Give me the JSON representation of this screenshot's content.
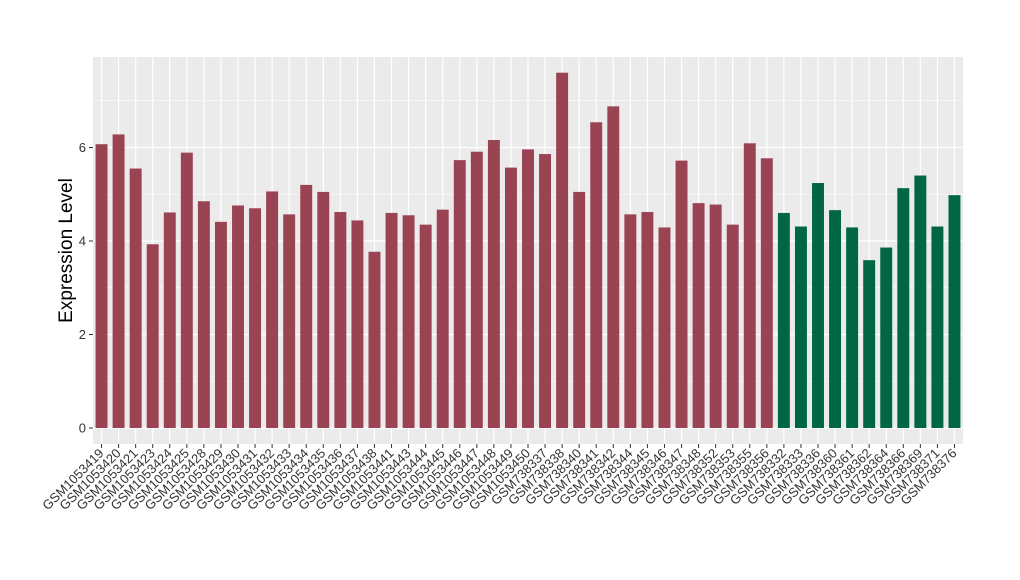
{
  "chart_data": {
    "type": "bar",
    "title": "",
    "xlabel": "",
    "ylabel": "Expression Level",
    "ylim": [
      0,
      7.9
    ],
    "yticks": [
      0,
      2,
      4,
      6
    ],
    "grid": true,
    "legend": "none",
    "colors": {
      "group_a": "#9A4352",
      "group_b": "#006643",
      "panel": "#EBEBEB",
      "grid": "#FFFFFF"
    },
    "categories": [
      "GSM1053419",
      "GSM1053420",
      "GSM1053421",
      "GSM1053423",
      "GSM1053424",
      "GSM1053425",
      "GSM1053428",
      "GSM1053429",
      "GSM1053430",
      "GSM1053431",
      "GSM1053432",
      "GSM1053433",
      "GSM1053434",
      "GSM1053435",
      "GSM1053436",
      "GSM1053437",
      "GSM1053438",
      "GSM1053441",
      "GSM1053443",
      "GSM1053444",
      "GSM1053445",
      "GSM1053446",
      "GSM1053447",
      "GSM1053448",
      "GSM1053449",
      "GSM1053450",
      "GSM738337",
      "GSM738338",
      "GSM738340",
      "GSM738341",
      "GSM738342",
      "GSM738344",
      "GSM738345",
      "GSM738346",
      "GSM738347",
      "GSM738348",
      "GSM738352",
      "GSM738353",
      "GSM738355",
      "GSM738356",
      "GSM738332",
      "GSM738333",
      "GSM738336",
      "GSM738360",
      "GSM738361",
      "GSM738362",
      "GSM738364",
      "GSM738366",
      "GSM738369",
      "GSM738371",
      "GSM738376"
    ],
    "values": [
      6.07,
      6.28,
      5.55,
      3.93,
      4.61,
      5.89,
      4.85,
      4.41,
      4.76,
      4.7,
      5.06,
      4.57,
      5.2,
      5.05,
      4.62,
      4.44,
      3.77,
      4.6,
      4.55,
      4.35,
      4.67,
      5.73,
      5.91,
      6.16,
      5.57,
      5.96,
      5.86,
      7.6,
      5.05,
      6.54,
      6.88,
      4.57,
      4.62,
      4.29,
      5.72,
      4.81,
      4.78,
      4.35,
      6.09,
      5.77,
      4.6,
      4.31,
      5.24,
      4.66,
      4.29,
      3.59,
      3.86,
      5.13,
      5.4,
      4.31,
      4.98
    ],
    "groups": [
      "a",
      "a",
      "a",
      "a",
      "a",
      "a",
      "a",
      "a",
      "a",
      "a",
      "a",
      "a",
      "a",
      "a",
      "a",
      "a",
      "a",
      "a",
      "a",
      "a",
      "a",
      "a",
      "a",
      "a",
      "a",
      "a",
      "a",
      "a",
      "a",
      "a",
      "a",
      "a",
      "a",
      "a",
      "a",
      "a",
      "a",
      "a",
      "a",
      "a",
      "b",
      "b",
      "b",
      "b",
      "b",
      "b",
      "b",
      "b",
      "b",
      "b",
      "b"
    ]
  }
}
